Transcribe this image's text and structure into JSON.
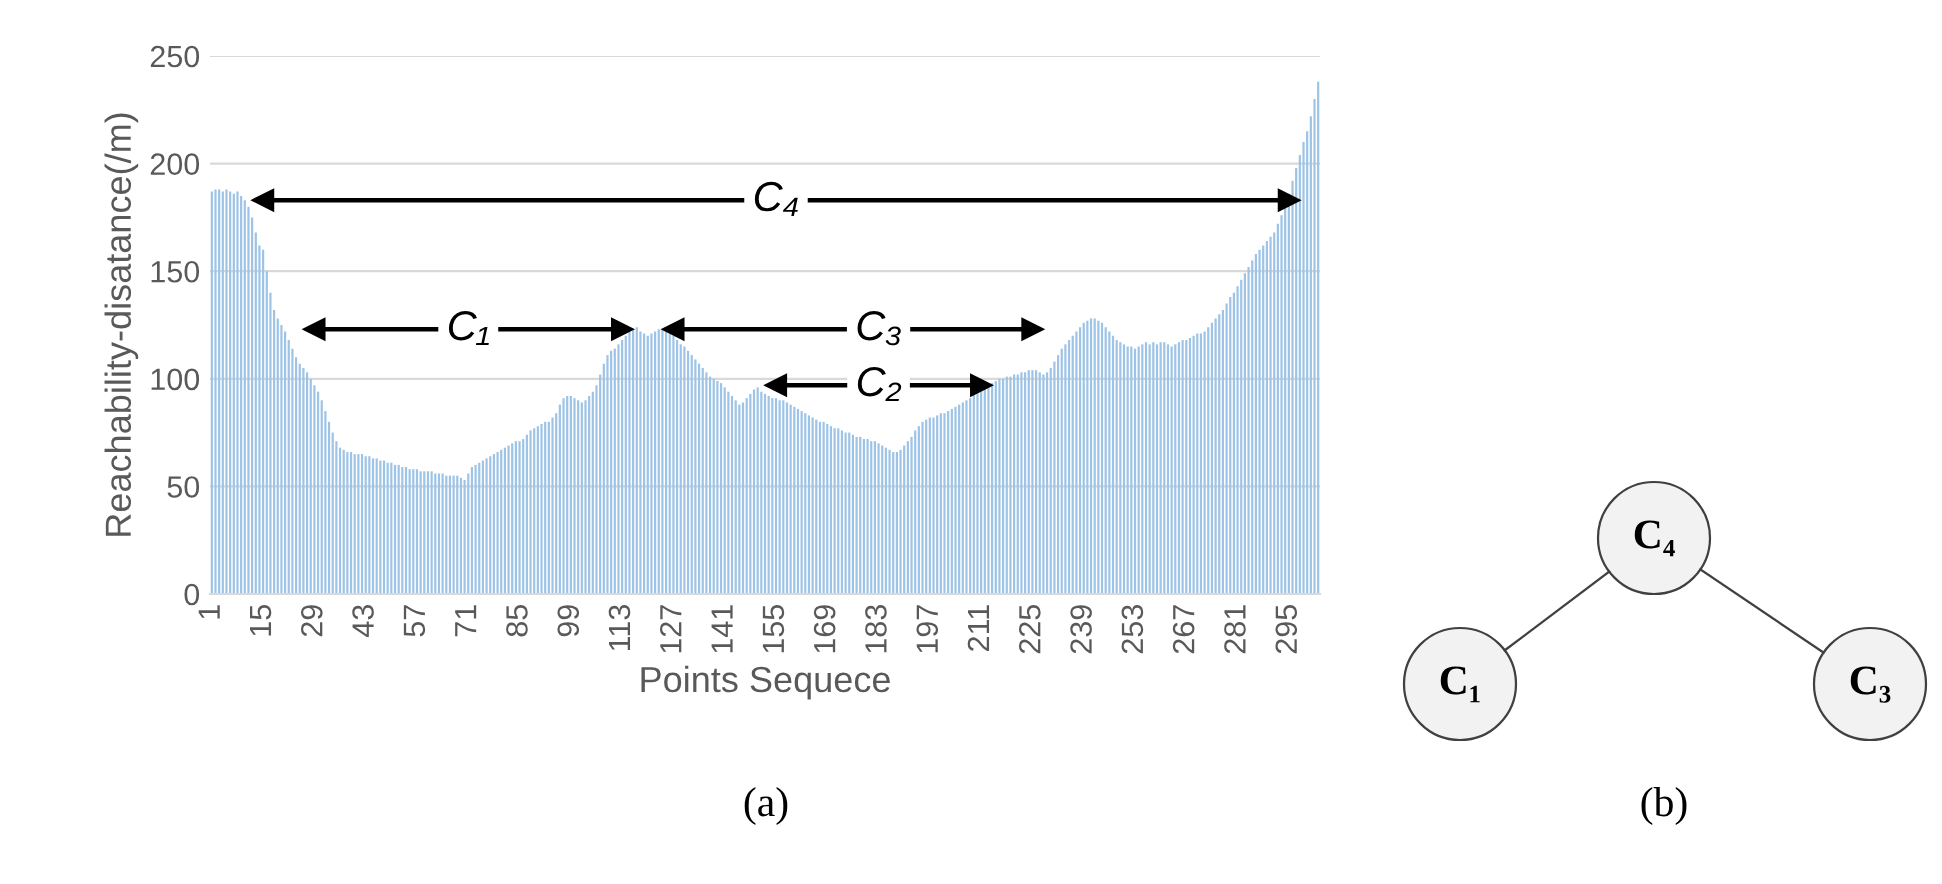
{
  "chart_data": [
    {
      "type": "bar",
      "title": "(a)",
      "xlabel": "Points Sequece",
      "ylabel": "Reachability-disatance(/m)",
      "color": "#9dc3e6",
      "ylim": [
        0,
        250
      ],
      "yticks": [
        0,
        50,
        100,
        150,
        200,
        250
      ],
      "grid": "y",
      "categories": [
        "1",
        null,
        null,
        null,
        null,
        null,
        null,
        null,
        null,
        null,
        null,
        null,
        null,
        null,
        "15",
        null,
        null,
        null,
        null,
        null,
        null,
        null,
        null,
        null,
        null,
        null,
        null,
        null,
        "29",
        null,
        null,
        null,
        null,
        null,
        null,
        null,
        null,
        null,
        null,
        null,
        null,
        null,
        "43",
        null,
        null,
        null,
        null,
        null,
        null,
        null,
        null,
        null,
        null,
        null,
        null,
        null,
        "57",
        null,
        null,
        null,
        null,
        null,
        null,
        null,
        null,
        null,
        null,
        null,
        null,
        null,
        "71",
        null,
        null,
        null,
        null,
        null,
        null,
        null,
        null,
        null,
        null,
        null,
        null,
        null,
        "85",
        null,
        null,
        null,
        null,
        null,
        null,
        null,
        null,
        null,
        null,
        null,
        null,
        null,
        "99",
        null,
        null,
        null,
        null,
        null,
        null,
        null,
        null,
        null,
        null,
        null,
        null,
        null,
        "113",
        null,
        null,
        null,
        null,
        null,
        null,
        null,
        null,
        null,
        null,
        null,
        null,
        null,
        "127",
        null,
        null,
        null,
        null,
        null,
        null,
        null,
        null,
        null,
        null,
        null,
        null,
        null,
        "141",
        null,
        null,
        null,
        null,
        null,
        null,
        null,
        null,
        null,
        null,
        null,
        null,
        null,
        "155",
        null,
        null,
        null,
        null,
        null,
        null,
        null,
        null,
        null,
        null,
        null,
        null,
        null,
        "169",
        null,
        null,
        null,
        null,
        null,
        null,
        null,
        null,
        null,
        null,
        null,
        null,
        null,
        "183",
        null,
        null,
        null,
        null,
        null,
        null,
        null,
        null,
        null,
        null,
        null,
        null,
        null,
        "197",
        null,
        null,
        null,
        null,
        null,
        null,
        null,
        null,
        null,
        null,
        null,
        null,
        null,
        "211",
        null,
        null,
        null,
        null,
        null,
        null,
        null,
        null,
        null,
        null,
        null,
        null,
        null,
        "225",
        null,
        null,
        null,
        null,
        null,
        null,
        null,
        null,
        null,
        null,
        null,
        null,
        null,
        "239",
        null,
        null,
        null,
        null,
        null,
        null,
        null,
        null,
        null,
        null,
        null,
        null,
        null,
        "253",
        null,
        null,
        null,
        null,
        null,
        null,
        null,
        null,
        null,
        null,
        null,
        null,
        null,
        "267",
        null,
        null,
        null,
        null,
        null,
        null,
        null,
        null,
        null,
        null,
        null,
        null,
        null,
        "281",
        null,
        null,
        null,
        null,
        null,
        null,
        null,
        null,
        null,
        null,
        null,
        null,
        null,
        "295",
        null,
        null,
        null,
        null,
        null,
        null,
        null,
        null
      ],
      "values": [
        187,
        188,
        188,
        187,
        188,
        187,
        186,
        187,
        185,
        183,
        180,
        175,
        168,
        162,
        160,
        150,
        140,
        132,
        128,
        125,
        122,
        118,
        114,
        110,
        107,
        105,
        103,
        100,
        97,
        94,
        90,
        85,
        80,
        75,
        71,
        68,
        67,
        66,
        66,
        65,
        65,
        65,
        64,
        64,
        63,
        63,
        62,
        62,
        61,
        61,
        60,
        60,
        59,
        59,
        58,
        58,
        58,
        57,
        57,
        57,
        57,
        56,
        56,
        56,
        55,
        55,
        55,
        55,
        54,
        53,
        56,
        59,
        60,
        61,
        62,
        63,
        64,
        65,
        66,
        67,
        68,
        69,
        70,
        71,
        71,
        72,
        74,
        76,
        77,
        78,
        79,
        80,
        80,
        82,
        84,
        88,
        91,
        92,
        92,
        91,
        90,
        89,
        90,
        92,
        94,
        97,
        102,
        107,
        111,
        113,
        114,
        116,
        118,
        120,
        122,
        123,
        124,
        122,
        121,
        120,
        121,
        122,
        123,
        123,
        122,
        121,
        120,
        118,
        116,
        115,
        113,
        111,
        109,
        107,
        105,
        103,
        101,
        100,
        99,
        98,
        96,
        94,
        92,
        90,
        88,
        89,
        91,
        93,
        95,
        96,
        94,
        93,
        92,
        91,
        91,
        90,
        90,
        89,
        88,
        87,
        86,
        85,
        84,
        83,
        82,
        81,
        80,
        80,
        79,
        78,
        77,
        77,
        76,
        75,
        75,
        74,
        73,
        73,
        72,
        72,
        71,
        71,
        70,
        69,
        68,
        67,
        66,
        66,
        67,
        69,
        71,
        73,
        76,
        78,
        80,
        81,
        82,
        82,
        83,
        84,
        84,
        85,
        86,
        87,
        88,
        89,
        90,
        91,
        93,
        94,
        95,
        96,
        97,
        98,
        99,
        100,
        100,
        101,
        101,
        102,
        102,
        103,
        103,
        104,
        104,
        104,
        103,
        102,
        103,
        105,
        108,
        111,
        114,
        116,
        118,
        120,
        122,
        124,
        126,
        127,
        128,
        128,
        127,
        126,
        124,
        122,
        120,
        118,
        117,
        116,
        115,
        115,
        114,
        115,
        116,
        117,
        116,
        117,
        116,
        117,
        117,
        116,
        115,
        116,
        117,
        118,
        118,
        119,
        120,
        121,
        121,
        122,
        124,
        126,
        128,
        130,
        132,
        135,
        138,
        140,
        143,
        146,
        149,
        152,
        155,
        158,
        160,
        162,
        164,
        166,
        168,
        172,
        176,
        181,
        186,
        192,
        198,
        204,
        210,
        215,
        222,
        230,
        238
      ],
      "series": [
        {
          "type": "line",
          "color": "#000000",
          "marker": "triangle",
          "x": [
            "15",
            "295"
          ],
          "values": [
            183,
            183
          ]
        },
        {
          "type": "line",
          "color": "#000000",
          "marker": "triangle",
          "x": [
            "29",
            "113"
          ],
          "values": [
            123,
            123
          ]
        },
        {
          "type": "line",
          "color": "#000000",
          "marker": "triangle",
          "x": [
            "127",
            "225"
          ],
          "values": [
            123,
            123
          ]
        },
        {
          "type": "line",
          "color": "#000000",
          "marker": "triangle",
          "x": [
            "155",
            "211"
          ],
          "values": [
            97,
            97
          ]
        }
      ],
      "annotations": [
        {
          "text": "C₄",
          "x": "155",
          "y": 183
        },
        {
          "text": "C₁",
          "x": "71",
          "y": 123
        },
        {
          "text": "C₃",
          "x": "183",
          "y": 123
        },
        {
          "text": "C₂",
          "x": "183",
          "y": 97
        }
      ]
    },
    {
      "type": "other",
      "title": "(b)",
      "annotations": [
        "C₄",
        "C₁",
        "C₃"
      ]
    }
  ]
}
